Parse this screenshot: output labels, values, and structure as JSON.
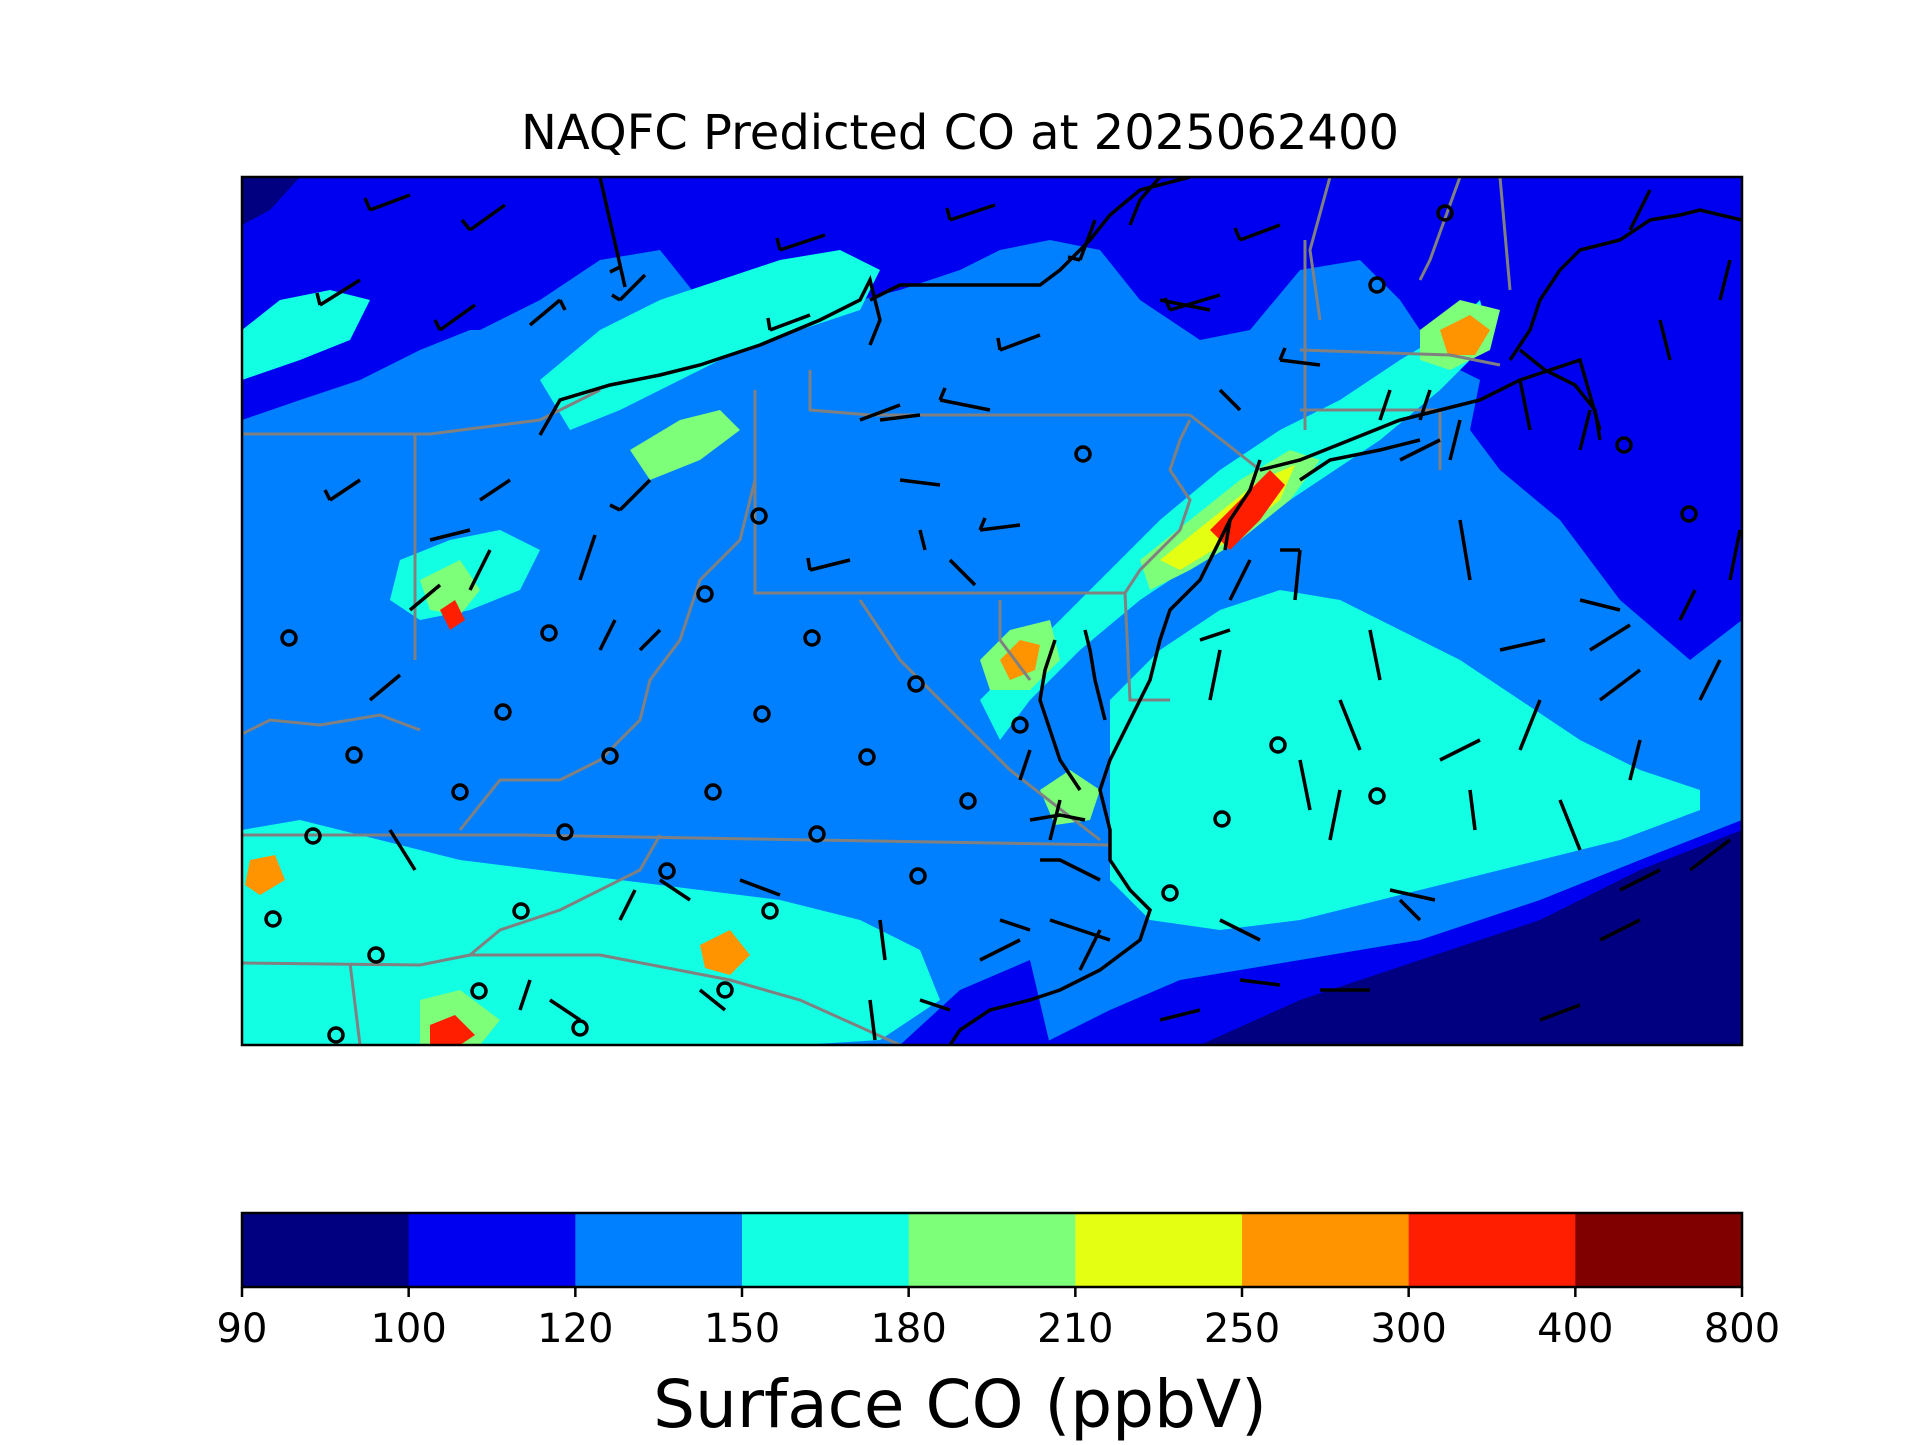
{
  "map": {
    "title": "NAQFC Predicted CO at 2025062400",
    "variable": "Surface CO",
    "units": "ppbV",
    "colorbar": {
      "label": "Surface CO (ppbV)",
      "bounds": [
        "90",
        "100",
        "120",
        "150",
        "180",
        "210",
        "250",
        "300",
        "400",
        "800"
      ],
      "colors": [
        "#000080",
        "#0000f1",
        "#0080ff",
        "#12ffe4",
        "#7dff7a",
        "#e4ff12",
        "#ff9400",
        "#ff1e00",
        "#800000"
      ]
    },
    "colors": {
      "state_borders": "#808080",
      "coastline": "#000000",
      "frame": "#000000"
    }
  }
}
